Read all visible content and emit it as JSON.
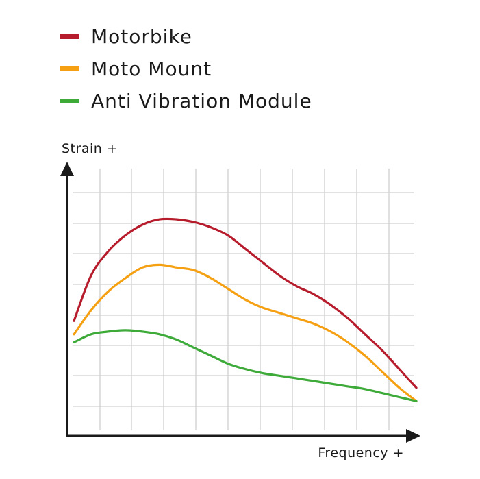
{
  "chart_data": {
    "type": "line",
    "xlabel": "Frequency +",
    "ylabel": "Strain +",
    "xlim": [
      0,
      1
    ],
    "ylim": [
      0,
      1
    ],
    "grid": true,
    "legend_placement": "top-left",
    "x": [
      0,
      0.05,
      0.1,
      0.15,
      0.2,
      0.25,
      0.3,
      0.35,
      0.4,
      0.45,
      0.5,
      0.55,
      0.6,
      0.65,
      0.7,
      0.75,
      0.8,
      0.85,
      0.9,
      0.95,
      1.0
    ],
    "series": [
      {
        "name": "Motorbike",
        "color": "#b71c2c",
        "values": [
          0.43,
          0.6,
          0.69,
          0.75,
          0.79,
          0.81,
          0.81,
          0.8,
          0.78,
          0.75,
          0.7,
          0.65,
          0.6,
          0.56,
          0.53,
          0.49,
          0.44,
          0.38,
          0.32,
          0.25,
          0.18
        ]
      },
      {
        "name": "Moto Mount",
        "color": "#f5a012",
        "values": [
          0.38,
          0.47,
          0.54,
          0.59,
          0.63,
          0.64,
          0.63,
          0.62,
          0.59,
          0.55,
          0.51,
          0.48,
          0.46,
          0.44,
          0.42,
          0.39,
          0.35,
          0.3,
          0.24,
          0.18,
          0.13
        ]
      },
      {
        "name": "Anti Vibration Module",
        "color": "#3eaa3a",
        "values": [
          0.35,
          0.38,
          0.39,
          0.395,
          0.39,
          0.38,
          0.36,
          0.33,
          0.3,
          0.27,
          0.25,
          0.235,
          0.225,
          0.215,
          0.205,
          0.195,
          0.185,
          0.175,
          0.16,
          0.145,
          0.13
        ]
      }
    ]
  }
}
